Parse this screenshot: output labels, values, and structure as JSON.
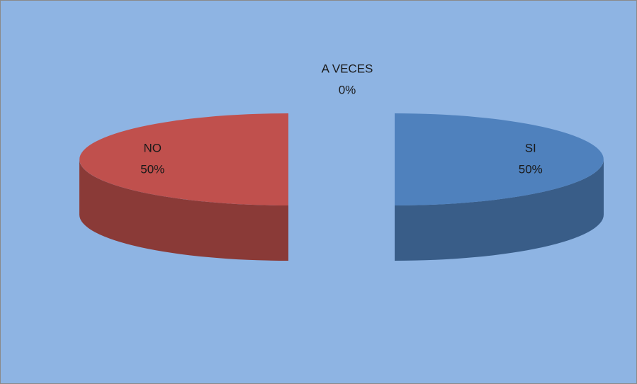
{
  "chart_data": {
    "type": "pie",
    "categories": [
      "SI",
      "NO",
      "A VECES"
    ],
    "values": [
      50,
      50,
      0
    ],
    "value_labels": [
      "50%",
      "50%",
      "0%"
    ],
    "colors": [
      "#4f81bd",
      "#c0504d",
      "#9bbb59"
    ],
    "explode": true,
    "three_d": true
  }
}
